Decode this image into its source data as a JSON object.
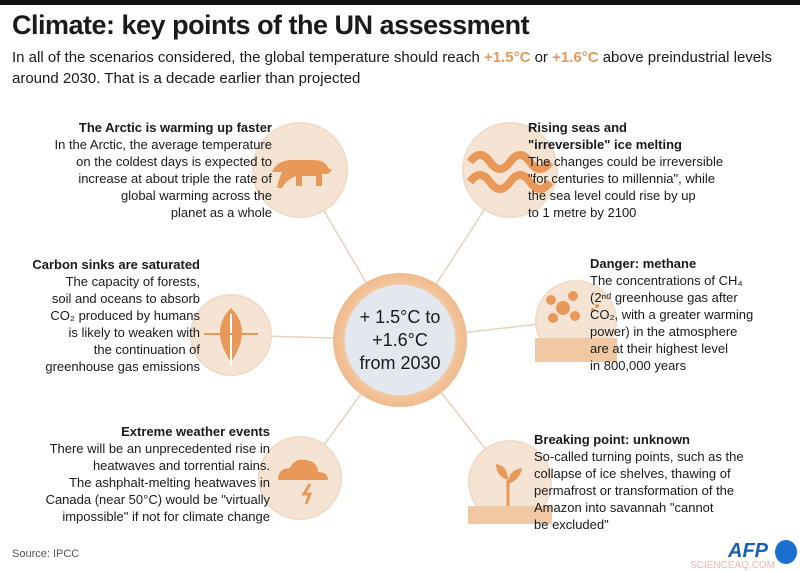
{
  "title": "Climate: key points of the UN assessment",
  "subtitle": {
    "part1": "In all of the scenarios considered, the global temperature should reach ",
    "hl1": "+1.5°C",
    "mid": " or ",
    "hl2": "+1.6°C",
    "part2": " above preindustrial levels around 2030. That is a decade earlier than projected"
  },
  "center": {
    "line1": "+ 1.5°C to",
    "line2": "+1.6°C",
    "line3": "from 2030"
  },
  "colors": {
    "accent": "#e09a5e",
    "icon_bg": "#f5e4d3",
    "icon": "#e8995a"
  },
  "points": [
    {
      "title": "The Arctic is warming up faster",
      "lines": [
        "In the Arctic, the average temperature",
        "on the coldest days is expected to",
        "increase at about triple the rate of",
        "global warming across the",
        "planet as a whole"
      ],
      "icon": "polar-bear-icon"
    },
    {
      "title": "Rising seas and",
      "title2": "\"irreversible\" ice melting",
      "lines": [
        "The changes could be irreversible",
        "\"for centuries to millennia\", while",
        "the sea level could rise by up",
        "to 1 metre by 2100"
      ],
      "icon": "waves-icon"
    },
    {
      "title": "Carbon sinks are saturated",
      "lines": [
        "The capacity of forests,",
        "soil and oceans to absorb",
        "CO₂ produced by humans",
        "is likely to weaken with",
        "the continuation of",
        "greenhouse gas emissions"
      ],
      "icon": "leaf-icon"
    },
    {
      "title": "Danger: methane",
      "lines": [
        "The concentrations of CH₄",
        "(2ⁿᵈ greenhouse gas after",
        "CO₂, with a greater warming",
        "power) in the atmosphere",
        "are at their highest level",
        "in 800,000 years"
      ],
      "icon": "molecule-icon"
    },
    {
      "title": "Extreme weather events",
      "lines": [
        "There will be an unprecedented rise in",
        "heatwaves and torrential rains.",
        "The ashphalt-melting heatwaves in",
        "Canada (near 50°C) would be \"virtually",
        "impossible\" if not for climate change"
      ],
      "icon": "storm-cloud-icon"
    },
    {
      "title": "Breaking point: unknown",
      "lines": [
        "So-called turning points, such as the",
        "collapse of ice shelves, thawing of",
        "permafrost or transformation of the",
        "Amazon into savannah \"cannot",
        "be excluded\""
      ],
      "icon": "dry-plant-icon"
    }
  ],
  "source": "Source: IPCC",
  "logo": "AFP",
  "watermark": "SCIENCEAQ.COM"
}
